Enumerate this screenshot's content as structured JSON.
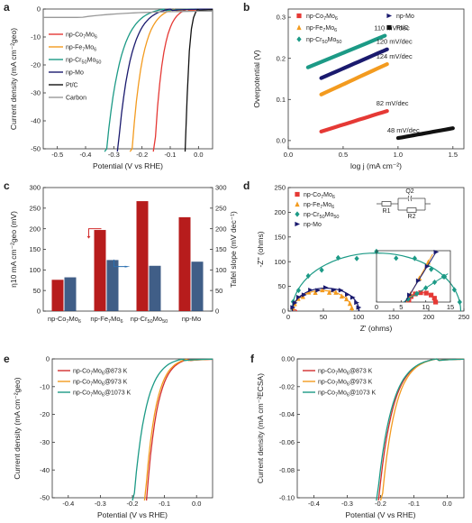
{
  "chart_data": [
    {
      "panel": "a",
      "type": "line",
      "xlabel": "Potential (V vs RHE)",
      "ylabel": "Current density (mA cm⁻²geo)",
      "xlim": [
        -0.55,
        0.05
      ],
      "ylim": [
        -50,
        0
      ],
      "xticks": [
        "-0.5",
        "-0.4",
        "-0.3",
        "-0.2",
        "-0.1",
        "0.0"
      ],
      "yticks": [
        "-50",
        "-40",
        "-30",
        "-20",
        "-10",
        "0"
      ],
      "series": [
        {
          "name": "np-Co7Mo6",
          "color": "#e53935",
          "onset": -0.035,
          "x50": -0.155
        },
        {
          "name": "np-Fe7Mo6",
          "color": "#f39b1f",
          "onset": -0.08,
          "x50": -0.235
        },
        {
          "name": "np-Cr50Mo50",
          "color": "#1c9a86",
          "onset": -0.12,
          "x50": -0.325
        },
        {
          "name": "np-Mo",
          "color": "#1a1a6e",
          "onset": -0.1,
          "x50": -0.285
        },
        {
          "name": "Pt/C",
          "color": "#111111",
          "onset": 0.0,
          "x50": -0.045
        },
        {
          "name": "Carbon",
          "color": "#999999",
          "onset": -0.5,
          "x50": -0.8
        }
      ]
    },
    {
      "panel": "b",
      "type": "line",
      "xlabel": "log j (mA cm⁻²)",
      "ylabel": "Overpotential (V)",
      "xlim": [
        0,
        1.6
      ],
      "ylim": [
        -0.02,
        0.32
      ],
      "xticks": [
        "0.0",
        "0.5",
        "1.0",
        "1.5"
      ],
      "yticks": [
        "0.0",
        "0.1",
        "0.2",
        "0.3"
      ],
      "series": [
        {
          "name": "np-Co7Mo6",
          "color": "#e53935",
          "marker": "square",
          "x": [
            0.3,
            0.9
          ],
          "y": [
            0.022,
            0.072
          ],
          "slope_label": "82 mV/dec"
        },
        {
          "name": "np-Fe7Mo6",
          "color": "#f39b1f",
          "marker": "triangle",
          "x": [
            0.3,
            0.9
          ],
          "y": [
            0.112,
            0.186
          ],
          "slope_label": "124 mV/dec"
        },
        {
          "name": "np-Cr50Mo50",
          "color": "#1c9a86",
          "marker": "diamond",
          "x": [
            0.18,
            0.88
          ],
          "y": [
            0.178,
            0.255
          ],
          "slope_label": "110 mV/dec"
        },
        {
          "name": "np-Mo",
          "color": "#1a1a6e",
          "marker": "tri-right",
          "x": [
            0.3,
            0.9
          ],
          "y": [
            0.152,
            0.222
          ],
          "slope_label": "120 mV/dec"
        },
        {
          "name": "Pt/C",
          "color": "#111111",
          "marker": "square",
          "x": [
            1.0,
            1.5
          ],
          "y": [
            0.006,
            0.03
          ],
          "slope_label": "48 mV/dec"
        }
      ]
    },
    {
      "panel": "c",
      "type": "bar",
      "categories": [
        "np-Co7Mo6",
        "np-Fe7Mo6",
        "np-Cr50Mo50",
        "np-Mo"
      ],
      "ylabel": "η10 mA cm⁻²geo (mV)",
      "ylabel_right": "Tafel slope (mV dec⁻¹)",
      "ylim": [
        0,
        300
      ],
      "ylim_right": [
        0,
        300
      ],
      "yticks": [
        "0",
        "50",
        "100",
        "150",
        "200",
        "250",
        "300"
      ],
      "series": [
        {
          "name": "η10",
          "color": "#b71c1c",
          "values": [
            76,
            197,
            267,
            228
          ]
        },
        {
          "name": "Tafel slope",
          "color": "#2b4d7a",
          "values": [
            82,
            124,
            110,
            120
          ]
        }
      ]
    },
    {
      "panel": "d",
      "type": "scatter",
      "xlabel": "Z' (ohms)",
      "ylabel": "-Z'' (ohms)",
      "xlim": [
        0,
        250
      ],
      "ylim": [
        0,
        250
      ],
      "xticks": [
        "0",
        "50",
        "100",
        "150",
        "200",
        "250"
      ],
      "yticks": [
        "0",
        "50",
        "100",
        "150",
        "200",
        "250"
      ],
      "circuit_labels": [
        "R1",
        "Q2",
        "R2"
      ],
      "inset": {
        "xticks": [
          "0",
          "5",
          "10",
          "15"
        ],
        "xlim": [
          0,
          15
        ],
        "ylim": [
          0,
          15
        ]
      },
      "series": [
        {
          "name": "np-Co7Mo6",
          "color": "#e53935",
          "marker": "square",
          "R1": 6.5,
          "R2": 5.5
        },
        {
          "name": "np-Fe7Mo6",
          "color": "#f39b1f",
          "marker": "triangle",
          "R1": 6.0,
          "R2": 85
        },
        {
          "name": "np-Cr50Mo50",
          "color": "#1c9a86",
          "marker": "diamond",
          "R1": 5.5,
          "R2": 240
        },
        {
          "name": "np-Mo",
          "color": "#1a1a6e",
          "marker": "tri-right",
          "R1": 5.8,
          "R2": 95
        }
      ]
    },
    {
      "panel": "e",
      "type": "line",
      "xlabel": "Potential (V vs RHE)",
      "ylabel": "Current density (mA cm⁻²geo)",
      "xlim": [
        -0.45,
        0.05
      ],
      "ylim": [
        -50,
        0
      ],
      "xticks": [
        "-0.4",
        "-0.3",
        "-0.2",
        "-0.1",
        "0.0"
      ],
      "yticks": [
        "-50",
        "-40",
        "-30",
        "-20",
        "-10",
        "0"
      ],
      "series": [
        {
          "name": "np-Co7Mo6@873 K",
          "color": "#d32f2f",
          "onset": -0.02,
          "x50": -0.155
        },
        {
          "name": "np-Co7Mo6@973 K",
          "color": "#f39b1f",
          "onset": -0.025,
          "x50": -0.16
        },
        {
          "name": "np-Co7Mo6@1073 K",
          "color": "#1c9a86",
          "onset": -0.04,
          "x50": -0.195
        }
      ]
    },
    {
      "panel": "f",
      "type": "line",
      "xlabel": "Potential (V vs RHE)",
      "ylabel": "Current density (mA cm⁻²ECSA)",
      "xlim": [
        -0.45,
        0.05
      ],
      "ylim": [
        -0.1,
        0.0
      ],
      "xticks": [
        "-0.4",
        "-0.3",
        "-0.2",
        "-0.1",
        "0.0"
      ],
      "yticks": [
        "-0.10",
        "-0.08",
        "-0.06",
        "-0.04",
        "-0.02",
        "0.00"
      ],
      "series": [
        {
          "name": "np-Co7Mo6@873 K",
          "color": "#d32f2f",
          "onset": -0.03,
          "x50": -0.205
        },
        {
          "name": "np-Co7Mo6@973 K",
          "color": "#f39b1f",
          "onset": -0.03,
          "x50": -0.195
        },
        {
          "name": "np-Co7Mo6@1073 K",
          "color": "#1c9a86",
          "onset": -0.03,
          "x50": -0.21
        }
      ]
    }
  ]
}
